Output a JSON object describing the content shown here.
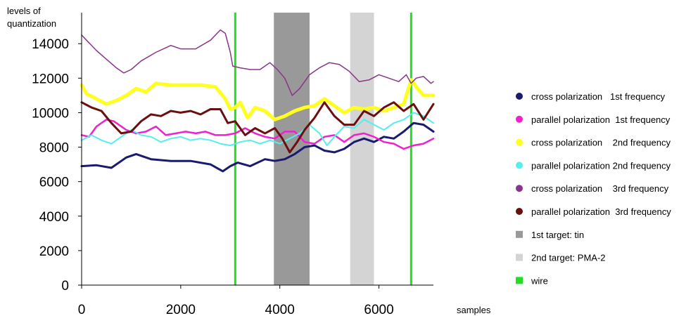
{
  "chart_data": {
    "type": "line",
    "ylabel_line1": "levels of",
    "ylabel_line2": "quantization",
    "xlabel": "samples",
    "xlim": [
      0,
      7100
    ],
    "ylim": [
      0,
      15800
    ],
    "xticks": [
      0,
      2000,
      4000,
      6000
    ],
    "yticks": [
      0,
      2000,
      4000,
      6000,
      8000,
      10000,
      12000,
      14000
    ],
    "grid": false,
    "legend_position": "right",
    "markers": [
      {
        "name": "wire",
        "type": "line",
        "x": 3100,
        "color": "#22dd22"
      },
      {
        "name": "wire",
        "type": "line",
        "x": 6650,
        "color": "#22dd22"
      }
    ],
    "regions": [
      {
        "name": "1st target: tin",
        "from": 3880,
        "to": 4600,
        "color": "#999999"
      },
      {
        "name": "2nd target: PMA-2",
        "from": 5420,
        "to": 5900,
        "color": "#d4d4d4"
      }
    ],
    "series": [
      {
        "name": "cross polarization   1st frequency",
        "color": "#1a1a6e",
        "width": 3,
        "x": [
          0,
          300,
          600,
          900,
          1100,
          1400,
          1800,
          2200,
          2600,
          2850,
          3000,
          3150,
          3400,
          3700,
          3900,
          4100,
          4300,
          4500,
          4700,
          4900,
          5100,
          5300,
          5500,
          5700,
          5900,
          6100,
          6300,
          6500,
          6700,
          6900,
          7100
        ],
        "y": [
          6900,
          6950,
          6800,
          7400,
          7600,
          7300,
          7200,
          7200,
          7000,
          6600,
          6900,
          7100,
          6900,
          7300,
          7200,
          7300,
          7600,
          8000,
          8100,
          7800,
          7700,
          7900,
          8300,
          8500,
          8300,
          8600,
          8500,
          8900,
          9400,
          9300,
          8900
        ]
      },
      {
        "name": "parallel polarization  1st frequency",
        "color": "#ee22cc",
        "width": 2.5,
        "x": [
          0,
          150,
          300,
          500,
          650,
          900,
          1100,
          1300,
          1500,
          1700,
          1900,
          2100,
          2300,
          2500,
          2700,
          2900,
          3100,
          3300,
          3500,
          3700,
          3900,
          4100,
          4300,
          4500,
          4700,
          4900,
          5100,
          5300,
          5500,
          5700,
          5900,
          6100,
          6300,
          6500,
          6700,
          6900,
          7100
        ],
        "y": [
          8700,
          8600,
          9200,
          9600,
          9500,
          9000,
          8800,
          8900,
          9200,
          8700,
          8800,
          8900,
          8800,
          8900,
          8700,
          8700,
          8800,
          9100,
          8800,
          8600,
          8500,
          8900,
          8900,
          8300,
          8200,
          8600,
          8700,
          8300,
          8700,
          8800,
          8600,
          8300,
          8200,
          7900,
          8100,
          8200,
          8500
        ]
      },
      {
        "name": "cross polarization   2nd frequency",
        "color": "#ffff22",
        "width": 5,
        "x": [
          0,
          100,
          300,
          500,
          700,
          900,
          1100,
          1300,
          1500,
          1800,
          2100,
          2400,
          2700,
          2900,
          3000,
          3100,
          3200,
          3350,
          3500,
          3700,
          3900,
          4100,
          4300,
          4500,
          4700,
          4900,
          5100,
          5300,
          5500,
          5700,
          5900,
          6100,
          6300,
          6500,
          6650,
          6750,
          6900,
          7100
        ],
        "y": [
          11600,
          11100,
          10800,
          10500,
          10700,
          11000,
          11400,
          11200,
          11700,
          11600,
          11600,
          11600,
          11500,
          10800,
          10200,
          10300,
          10600,
          9700,
          10300,
          10100,
          9600,
          9800,
          10100,
          10300,
          10400,
          10800,
          10400,
          10000,
          10300,
          10200,
          10300,
          10100,
          10300,
          10500,
          11900,
          11500,
          11000,
          11000
        ]
      },
      {
        "name": "parallel polarization 2nd frequency",
        "color": "#55eeee",
        "width": 2,
        "x": [
          0,
          200,
          400,
          600,
          800,
          1000,
          1200,
          1400,
          1600,
          1800,
          2000,
          2200,
          2400,
          2600,
          2800,
          3000,
          3200,
          3400,
          3600,
          3800,
          4000,
          4200,
          4400,
          4600,
          4800,
          4950,
          5100,
          5300,
          5500,
          5700,
          5900,
          6100,
          6300,
          6500,
          6700,
          6900,
          7100
        ],
        "y": [
          8400,
          8700,
          8400,
          8200,
          8600,
          9000,
          8700,
          8600,
          8300,
          8500,
          8600,
          8400,
          8500,
          8400,
          8200,
          8100,
          8300,
          8400,
          8200,
          8400,
          8200,
          8500,
          8800,
          9300,
          8800,
          8100,
          8600,
          9200,
          9100,
          9600,
          9300,
          9000,
          9400,
          9600,
          10000,
          9800,
          9400
        ]
      },
      {
        "name": "cross polarization    3rd frequency",
        "color": "#8a358a",
        "width": 1.5,
        "x": [
          0,
          100,
          300,
          500,
          700,
          850,
          1000,
          1200,
          1500,
          1800,
          2000,
          2300,
          2600,
          2800,
          2900,
          3000,
          3050,
          3200,
          3400,
          3600,
          3800,
          3950,
          4100,
          4250,
          4400,
          4600,
          4800,
          5000,
          5200,
          5400,
          5600,
          5800,
          6000,
          6200,
          6400,
          6550,
          6650,
          6750,
          6900,
          7050,
          7100
        ],
        "y": [
          14500,
          14200,
          13600,
          13100,
          12600,
          12300,
          12500,
          13000,
          13500,
          13900,
          13700,
          13700,
          14200,
          14800,
          14600,
          13500,
          12700,
          12600,
          12500,
          12500,
          12900,
          12500,
          12000,
          11000,
          11400,
          12200,
          12600,
          12900,
          12800,
          12400,
          11800,
          11900,
          12200,
          12000,
          11800,
          12200,
          11700,
          12000,
          12100,
          11700,
          11800
        ]
      },
      {
        "name": "parallel polarization  3rd frequency",
        "color": "#6a0f0f",
        "width": 3,
        "x": [
          0,
          200,
          400,
          600,
          800,
          1000,
          1200,
          1400,
          1600,
          1800,
          2000,
          2200,
          2400,
          2600,
          2800,
          2950,
          3100,
          3300,
          3500,
          3700,
          3900,
          4050,
          4200,
          4350,
          4500,
          4700,
          4900,
          5100,
          5300,
          5500,
          5700,
          5900,
          6100,
          6300,
          6500,
          6700,
          6900,
          7100
        ],
        "y": [
          10600,
          10300,
          10100,
          9400,
          8800,
          8900,
          9500,
          9900,
          9800,
          10100,
          10000,
          10100,
          9900,
          10200,
          10200,
          9400,
          9500,
          8700,
          9100,
          8800,
          9100,
          8500,
          7700,
          8300,
          9000,
          9700,
          10600,
          9800,
          9300,
          9300,
          10100,
          9800,
          10300,
          10600,
          10100,
          10500,
          9600,
          10500
        ]
      }
    ]
  },
  "legend": {
    "items": [
      {
        "label": "cross polarization   1st frequency",
        "color": "#1a1a6e",
        "shape": "dot"
      },
      {
        "label": "parallel polarization  1st frequency",
        "color": "#ee22cc",
        "shape": "dot"
      },
      {
        "label": "cross polarization    2nd frequency",
        "color": "#ffff22",
        "shape": "dot"
      },
      {
        "label": "parallel polarization 2nd frequency",
        "color": "#55eeee",
        "shape": "dot"
      },
      {
        "label": "cross polarization    3rd frequency",
        "color": "#8a358a",
        "shape": "dot"
      },
      {
        "label": "parallel polarization  3rd frequency",
        "color": "#6a0f0f",
        "shape": "dot"
      },
      {
        "label": "1st target: tin",
        "color": "#999999",
        "shape": "square"
      },
      {
        "label": "2nd target: PMA-2",
        "color": "#d4d4d4",
        "shape": "square"
      },
      {
        "label": "wire",
        "color": "#22dd22",
        "shape": "square"
      }
    ]
  }
}
